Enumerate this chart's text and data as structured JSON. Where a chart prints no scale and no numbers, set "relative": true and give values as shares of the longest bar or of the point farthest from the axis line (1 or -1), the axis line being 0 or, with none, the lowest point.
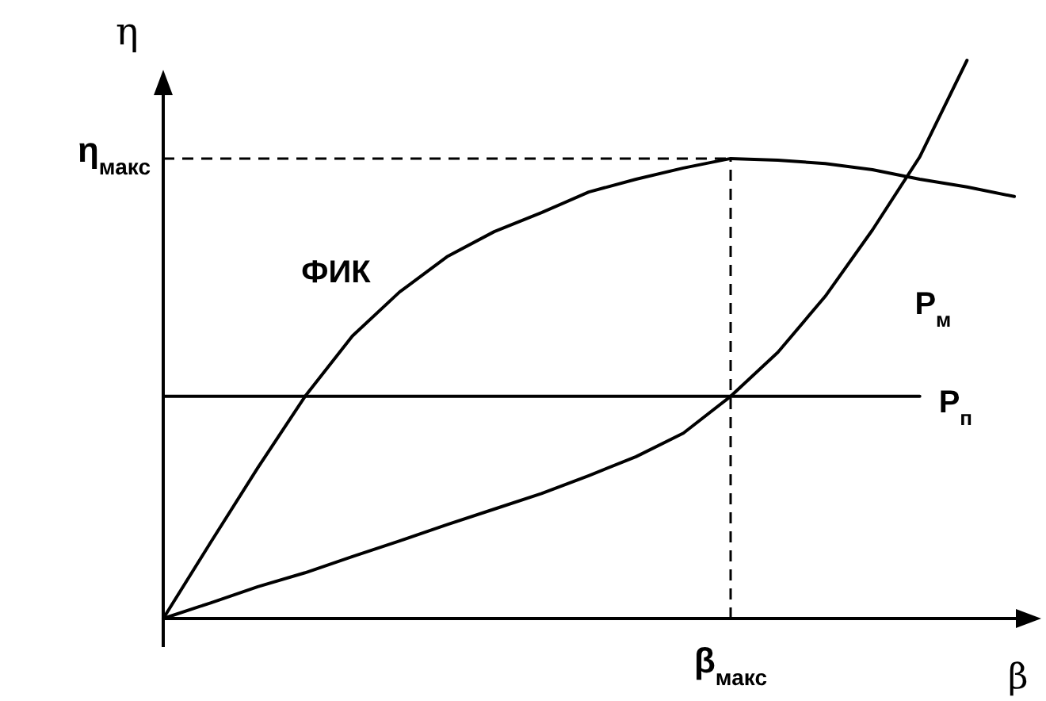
{
  "chart_data": {
    "type": "line",
    "relative": true,
    "xlabel": "β",
    "ylabel": "η",
    "categories": [
      null,
      null,
      null,
      null,
      null,
      null,
      null,
      null,
      null,
      null,
      null,
      null,
      null,
      null,
      null,
      null,
      null,
      null,
      null
    ],
    "series": [
      {
        "name": "ФИК",
        "color": "#000000",
        "values": [
          0,
          0.136,
          0.27,
          0.398,
          0.506,
          0.585,
          0.648,
          0.693,
          0.727,
          0.764,
          0.787,
          0.807,
          0.824,
          0.821,
          0.815,
          0.804,
          0.787,
          0.773,
          0.756
        ]
      },
      {
        "name": "P$_{м}$",
        "color": "#000000",
        "values": [
          0,
          0.028,
          0.057,
          0.082,
          0.111,
          0.139,
          0.168,
          0.196,
          0.224,
          0.256,
          0.29,
          0.332,
          0.398,
          0.477,
          0.577,
          0.696,
          0.827,
          1,
          null
        ]
      },
      {
        "name": "P$_{п}$",
        "color": "#000000",
        "values": [
          0.398,
          0.398,
          0.398,
          0.398,
          0.398,
          0.398,
          0.398,
          0.398,
          0.398,
          0.398,
          0.398,
          0.398,
          0.398,
          0.398,
          0.398,
          0.398,
          0.398,
          null,
          null
        ]
      }
    ],
    "annotations": [
      "β$_{макс}$"
    ],
    "ref_lines": [
      {
        "axis": "y",
        "value": 0.824,
        "label": "η$_{макс}$",
        "line_style": "dashed",
        "color": "#000000"
      }
    ]
  }
}
